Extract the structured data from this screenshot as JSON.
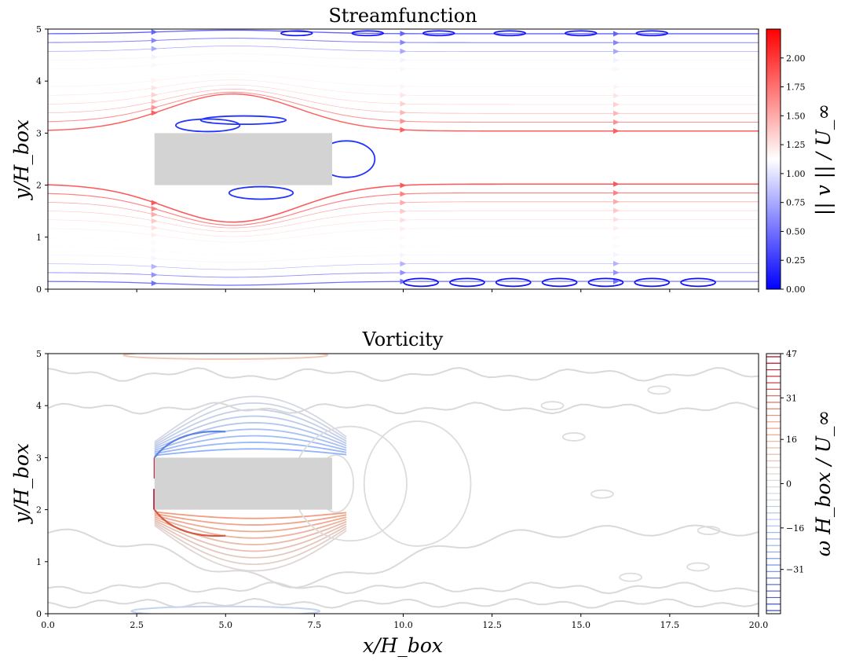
{
  "chart_data": [
    {
      "type": "streamplot",
      "title": "Streamfunction",
      "xlabel": "",
      "ylabel": "y/H_box",
      "xlim": [
        0,
        20
      ],
      "ylim": [
        0,
        5
      ],
      "xticks": [
        0,
        2.5,
        5,
        7.5,
        10,
        12.5,
        15,
        17.5,
        20
      ],
      "yticks": [
        0,
        1,
        2,
        3,
        4,
        5
      ],
      "ytick_labels": [
        "0",
        "1",
        "2",
        "3",
        "4",
        "5"
      ],
      "box": {
        "x0": 3,
        "x1": 8,
        "y0": 2,
        "y1": 3,
        "color": "#d3d3d3"
      },
      "colormap": "bwr",
      "colorbar": {
        "label": "|| v || / U_∞",
        "range": [
          0,
          2.25
        ],
        "ticks": [
          0.0,
          0.25,
          0.5,
          0.75,
          1.0,
          1.25,
          1.5,
          1.75,
          2.0
        ],
        "tick_labels": [
          "0.00",
          "0.25",
          "0.50",
          "0.75",
          "1.00",
          "1.25",
          "1.50",
          "1.75",
          "2.00"
        ]
      }
    },
    {
      "type": "contour",
      "title": "Vorticity",
      "xlabel": "x/H_box",
      "ylabel": "y/H_box",
      "xlim": [
        0,
        20
      ],
      "ylim": [
        0,
        5
      ],
      "xticks": [
        0,
        2.5,
        5,
        7.5,
        10,
        12.5,
        15,
        17.5,
        20
      ],
      "xtick_labels": [
        "0.0",
        "2.5",
        "5.0",
        "7.5",
        "10.0",
        "12.5",
        "15.0",
        "17.5",
        "20.0"
      ],
      "yticks": [
        0,
        1,
        2,
        3,
        4,
        5
      ],
      "ytick_labels": [
        "0",
        "1",
        "2",
        "3",
        "4",
        "5"
      ],
      "box": {
        "x0": 3,
        "x1": 8,
        "y0": 2,
        "y1": 3,
        "color": "#d3d3d3"
      },
      "colormap": "coolwarm",
      "colorbar": {
        "label": "ω H_box / U_∞",
        "range": [
          -47,
          47
        ],
        "ticks": [
          47,
          31,
          16,
          0,
          -16,
          -31
        ],
        "tick_labels": [
          "47",
          "31",
          "16",
          "0",
          "−16",
          "−31"
        ]
      }
    }
  ]
}
